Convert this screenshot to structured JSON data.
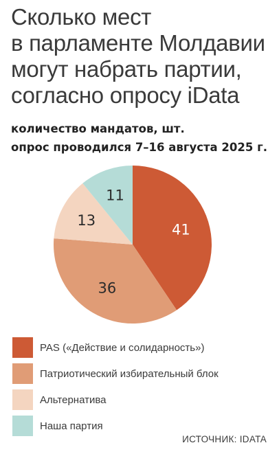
{
  "header": {
    "title_lines": [
      "Сколько мест",
      "в парламенте Молдавии",
      "могут набрать партии,",
      "согласно опросу iData"
    ],
    "subtitle_lines": [
      "количество мандатов, шт.",
      "опрос проводился 7–16 августа 2025 г."
    ]
  },
  "chart_data": {
    "type": "pie",
    "start_angle_deg": 0,
    "direction": "clockwise",
    "slices": [
      {
        "name": "PAS («Действие и солидарность»)",
        "value": 41,
        "color": "#cd5a35",
        "label_color": "#ffffff"
      },
      {
        "name": "Патриотический избирательный блок",
        "value": 36,
        "color": "#e09c76",
        "label_color": "#2b2b2b"
      },
      {
        "name": "Альтернатива",
        "value": 13,
        "color": "#f4d5c0",
        "label_color": "#2b2b2b"
      },
      {
        "name": "Наша партия",
        "value": 11,
        "color": "#b5dcd7",
        "label_color": "#2b2b2b"
      }
    ]
  },
  "source": "ИСТОЧНИК: IDATA"
}
